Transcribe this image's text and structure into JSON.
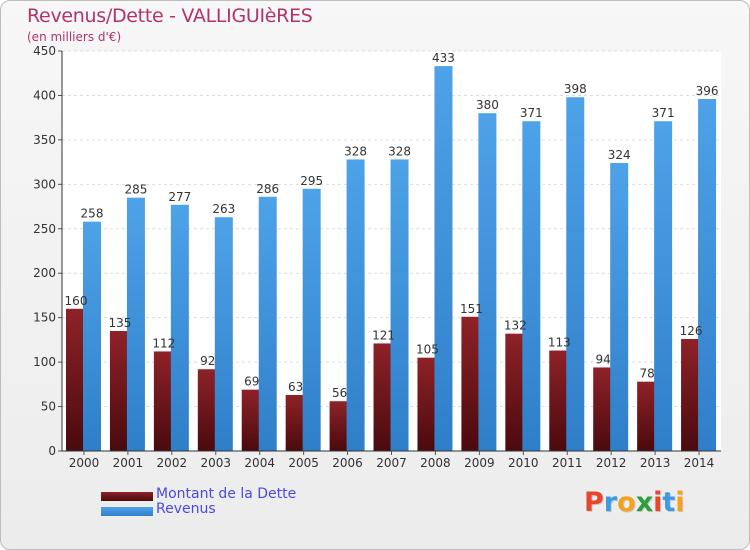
{
  "header": {
    "title": "Revenus/Dette - VALLIGUIèRES",
    "subtitle": "(en milliers d'€)"
  },
  "legend": {
    "debt_label": "Montant de la Dette",
    "revenue_label": "Revenus"
  },
  "logo": {
    "letters": [
      "P",
      "r",
      "o",
      "x",
      "i",
      "t",
      "i"
    ],
    "colors": [
      "#e8462b",
      "#3c9be0",
      "#f4a21d",
      "#2f9e3f",
      "#e8462b",
      "#3c9be0",
      "#f4a21d"
    ]
  },
  "colors": {
    "debt": "#7a1a1f",
    "revenue": "#3a8ed8",
    "title": "#b2336a",
    "legend_text": "#4a4adf"
  },
  "chart_data": {
    "type": "bar",
    "title": "Revenus/Dette - VALLIGUIèRES",
    "subtitle": "(en milliers d'€)",
    "categories": [
      "2000",
      "2001",
      "2002",
      "2003",
      "2004",
      "2005",
      "2006",
      "2007",
      "2008",
      "2009",
      "2010",
      "2011",
      "2012",
      "2013",
      "2014"
    ],
    "series": [
      {
        "name": "Montant de la Dette",
        "values": [
          160,
          135,
          112,
          92,
          69,
          63,
          56,
          121,
          105,
          151,
          132,
          113,
          94,
          78,
          126
        ]
      },
      {
        "name": "Revenus",
        "values": [
          258,
          285,
          277,
          263,
          286,
          295,
          328,
          328,
          433,
          380,
          371,
          398,
          324,
          371,
          396
        ]
      }
    ],
    "y_ticks": [
      "0",
      "50",
      "100",
      "150",
      "200",
      "250",
      "300",
      "350",
      "400",
      "450"
    ],
    "ylim": [
      0,
      450
    ],
    "grid": true,
    "legend_position": "bottom-left"
  }
}
